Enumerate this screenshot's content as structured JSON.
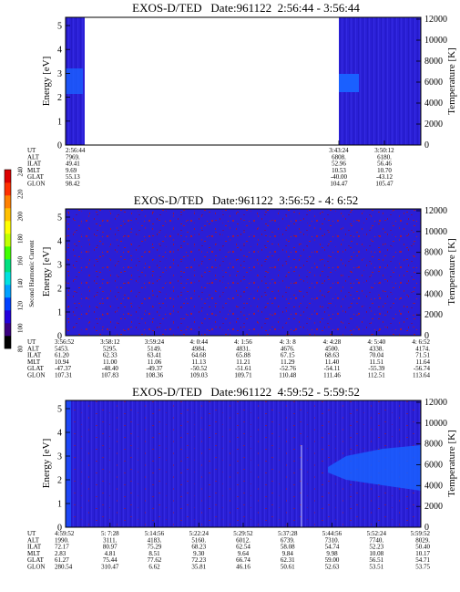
{
  "colorbar": {
    "label": "Second Harmonic Current",
    "ticks": [
      "80",
      "100",
      "120",
      "140",
      "160",
      "180",
      "200",
      "220",
      "240"
    ],
    "colors": [
      "#000000",
      "#3a0080",
      "#2200dd",
      "#0040ff",
      "#00a0ff",
      "#00e0e0",
      "#00e080",
      "#40ff00",
      "#c0ff00",
      "#ffff00",
      "#ffc000",
      "#ff8000",
      "#ff3000",
      "#dd0000"
    ]
  },
  "chart_data": [
    {
      "type": "heatmap",
      "title": "EXOS-D/TED   Date:961122  2:56:44 - 3:56:44",
      "ylabel": "Energy [eV]",
      "y2label": "Temperature [K]",
      "ylim": [
        0,
        5
      ],
      "y2lim": [
        0,
        12000
      ],
      "yticks": [
        "0",
        "1",
        "2",
        "3",
        "4",
        "5"
      ],
      "y2ticks": [
        "0",
        "2000",
        "4000",
        "6000",
        "8000",
        "10000",
        "12000"
      ],
      "data_intervals": [
        {
          "start": "2:56:44",
          "end": "3:00:00",
          "background": "#2a1fd6"
        },
        {
          "start": "3:43:24",
          "end": "3:56:44",
          "background": "#2a1fd6"
        }
      ],
      "bright_band": {
        "energy_range": [
          2,
          3
        ],
        "color": "#1a60ff"
      },
      "orbit_rows": [
        "UT",
        "ALT",
        "ILAT",
        "MLT",
        "GLAT",
        "GLON"
      ],
      "orbit": [
        {
          "UT": "2:56:44",
          "ALT": "7969.",
          "ILAT": "49.41",
          "MLT": "9.69",
          "GLAT": "55.13",
          "GLON": "98.42"
        },
        {
          "UT": "3:43:24",
          "ALT": "6808.",
          "ILAT": "52.96",
          "MLT": "10.53",
          "GLAT": "-40.00",
          "GLON": "104.47"
        },
        {
          "UT": "3:50:12",
          "ALT": "6180.",
          "ILAT": "56.46",
          "MLT": "10.70",
          "GLAT": "-43.12",
          "GLON": "105.47"
        }
      ]
    },
    {
      "type": "heatmap",
      "title": "EXOS-D/TED   Date:961122  3:56:52 - 4: 6:52",
      "ylabel": "Energy [eV]",
      "y2label": "Temperature [K]",
      "ylim": [
        0,
        5
      ],
      "y2lim": [
        0,
        12000
      ],
      "yticks": [
        "0",
        "1",
        "2",
        "3",
        "4",
        "5"
      ],
      "y2ticks": [
        "0",
        "2000",
        "4000",
        "6000",
        "8000",
        "10000",
        "12000"
      ],
      "data_intervals": [
        {
          "start": "3:56:52",
          "end": "4: 6:52",
          "background": "#2a1fd6"
        }
      ],
      "orbit_rows": [
        "UT",
        "ALT",
        "ILAT",
        "MLT",
        "GLAT",
        "GLON"
      ],
      "orbit": [
        {
          "UT": "3:56:52",
          "ALT": "5453.",
          "ILAT": "61.20",
          "MLT": "10.94",
          "GLAT": "-47.37",
          "GLON": "107.31"
        },
        {
          "UT": "3:58:12",
          "ALT": "5295.",
          "ILAT": "62.33",
          "MLT": "11.00",
          "GLAT": "-48.40",
          "GLON": "107.83"
        },
        {
          "UT": "3:59:24",
          "ALT": "5149.",
          "ILAT": "63.41",
          "MLT": "11.06",
          "GLAT": "-49.37",
          "GLON": "108.36"
        },
        {
          "UT": "4: 0:44",
          "ALT": "4984.",
          "ILAT": "64.68",
          "MLT": "11.13",
          "GLAT": "-50.52",
          "GLON": "109.03"
        },
        {
          "UT": "4: 1:56",
          "ALT": "4831.",
          "ILAT": "65.88",
          "MLT": "11.21",
          "GLAT": "-51.61",
          "GLON": "109.71"
        },
        {
          "UT": "4: 3: 8",
          "ALT": "4676.",
          "ILAT": "67.15",
          "MLT": "11.29",
          "GLAT": "-52.76",
          "GLON": "110.48"
        },
        {
          "UT": "4: 4:28",
          "ALT": "4500.",
          "ILAT": "68.63",
          "MLT": "11.40",
          "GLAT": "-54.11",
          "GLON": "111.46"
        },
        {
          "UT": "4: 5:40",
          "ALT": "4338.",
          "ILAT": "70.04",
          "MLT": "11.51",
          "GLAT": "-55.39",
          "GLON": "112.51"
        },
        {
          "UT": "4: 6:52",
          "ALT": "4174.",
          "ILAT": "71.51",
          "MLT": "11.64",
          "GLAT": "-56.74",
          "GLON": "113.64"
        }
      ]
    },
    {
      "type": "heatmap",
      "title": "EXOS-D/TED   Date:961122  4:59:52 - 5:59:52",
      "ylabel": "Energy [eV]",
      "y2label": "Temperature [K]",
      "ylim": [
        0,
        5
      ],
      "y2lim": [
        0,
        12000
      ],
      "yticks": [
        "0",
        "1",
        "2",
        "3",
        "4",
        "5"
      ],
      "y2ticks": [
        "0",
        "2000",
        "4000",
        "6000",
        "8000",
        "10000",
        "12000"
      ],
      "data_intervals": [
        {
          "start": "4:59:52",
          "end": "5:59:52",
          "background": "#2a1fd6"
        }
      ],
      "bright_band": {
        "energy_range": [
          1.8,
          3.0
        ],
        "color": "#1a60ff"
      },
      "orbit_rows": [
        "UT",
        "ALT",
        "ILAT",
        "MLT",
        "GLAT",
        "GLON"
      ],
      "orbit": [
        {
          "UT": "4:59:52",
          "ALT": "1990.",
          "ILAT": "72.17",
          "MLT": "2.83",
          "GLAT": "61.27",
          "GLON": "280.54"
        },
        {
          "UT": "5: 7:28",
          "ALT": "3111.",
          "ILAT": "80.97",
          "MLT": "4.81",
          "GLAT": "75.44",
          "GLON": "310.47"
        },
        {
          "UT": "5:14:56",
          "ALT": "4183.",
          "ILAT": "75.29",
          "MLT": "8.51",
          "GLAT": "77.62",
          "GLON": "6.62"
        },
        {
          "UT": "5:22:24",
          "ALT": "5160.",
          "ILAT": "68.23",
          "MLT": "9.30",
          "GLAT": "72.23",
          "GLON": "35.81"
        },
        {
          "UT": "5:29:52",
          "ALT": "6012.",
          "ILAT": "62.54",
          "MLT": "9.64",
          "GLAT": "66.74",
          "GLON": "46.16"
        },
        {
          "UT": "5:37:28",
          "ALT": "6739.",
          "ILAT": "58.08",
          "MLT": "9.84",
          "GLAT": "62.31",
          "GLON": "50.61"
        },
        {
          "UT": "5:44:56",
          "ALT": "7310.",
          "ILAT": "54.74",
          "MLT": "9.98",
          "GLAT": "59.00",
          "GLON": "52.63"
        },
        {
          "UT": "5:52:24",
          "ALT": "7740.",
          "ILAT": "52.23",
          "MLT": "10.08",
          "GLAT": "56.51",
          "GLON": "53.51"
        },
        {
          "UT": "5:59:52",
          "ALT": "8029.",
          "ILAT": "50.40",
          "MLT": "10.17",
          "GLAT": "54.71",
          "GLON": "53.75"
        }
      ]
    }
  ]
}
